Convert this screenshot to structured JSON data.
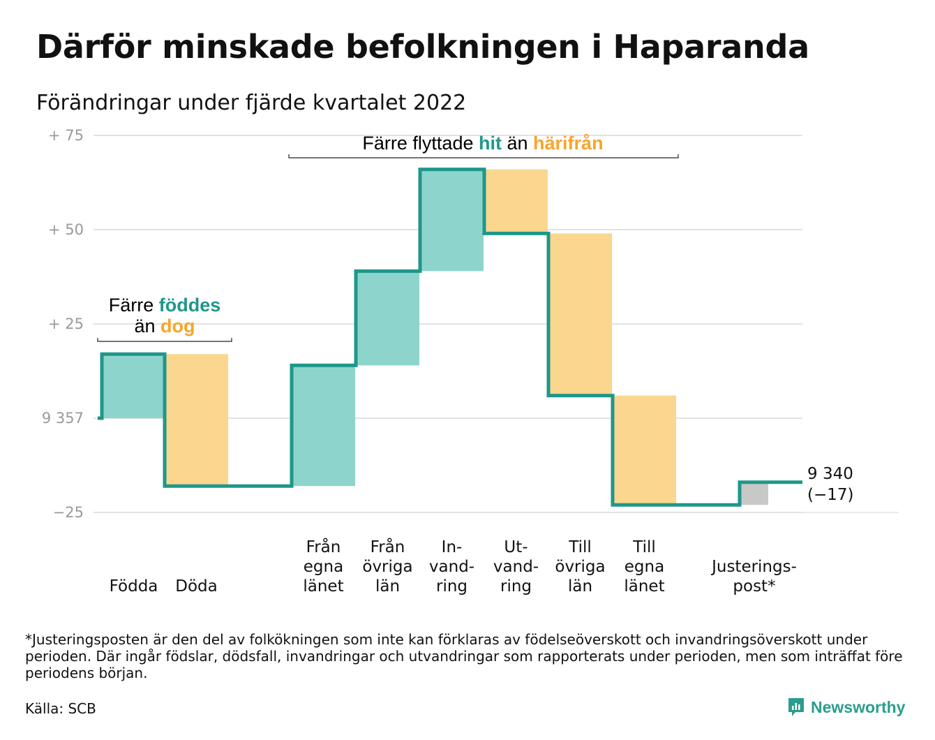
{
  "title": "Därför minskade befolkningen i Haparanda",
  "subtitle": "Förändringar under fjärde kvartalet 2022",
  "footnote": "*Justeringsposten är den del av folkökningen som inte kan förklaras av födelseöverskott och invandringsöverskott under perioden. Där ingår födslar, dödsfall, invandringar och utvandringar som rapporterats under perioden, men som inträffat före periodens början.",
  "source": "Källa: SCB",
  "brand": "Newsworthy",
  "colors": {
    "increase": "#8dd5cc",
    "decrease": "#fad68f",
    "adjustment": "#c8c8c8",
    "line": "#1f978a",
    "accent_teal": "#1f978a",
    "accent_orange": "#f6a52a",
    "grid": "#e2e2e2"
  },
  "annotations": {
    "births_deaths": {
      "line1_pre": "Färre ",
      "line1_em": "föddes",
      "line2_pre": "än ",
      "line2_em": "dog"
    },
    "migration": {
      "pre": "Färre flyttade ",
      "em1": "hit",
      "mid": " än ",
      "em2": "härifrån"
    }
  },
  "chart_data": {
    "type": "waterfall",
    "baseline": 9357,
    "baseline_label": "9 357",
    "end_label": [
      "9 340",
      "(−17)"
    ],
    "yticks": [
      {
        "value": 75,
        "label": "+ 75"
      },
      {
        "value": 50,
        "label": "+ 50"
      },
      {
        "value": 25,
        "label": "+ 25"
      },
      {
        "value": 0,
        "label": "9 357"
      },
      {
        "value": -25,
        "label": "−25"
      }
    ],
    "ylim": [
      -25,
      75
    ],
    "grid": true,
    "categories": [
      {
        "label": [
          "Födda"
        ],
        "value": 17,
        "kind": "increase"
      },
      {
        "label": [
          "Döda"
        ],
        "value": -35,
        "kind": "decrease"
      },
      {
        "label": [
          "Från",
          "egna",
          "länet"
        ],
        "value": 32,
        "kind": "increase"
      },
      {
        "label": [
          "Från",
          "övriga",
          "län"
        ],
        "value": 25,
        "kind": "increase"
      },
      {
        "label": [
          "In-",
          "vand-",
          "ring"
        ],
        "value": 27,
        "kind": "increase"
      },
      {
        "label": [
          "Ut-",
          "vand-",
          "ring"
        ],
        "value": -17,
        "kind": "decrease"
      },
      {
        "label": [
          "Till",
          "övriga",
          "län"
        ],
        "value": -43,
        "kind": "decrease"
      },
      {
        "label": [
          "Till",
          "egna",
          "länet"
        ],
        "value": -29,
        "kind": "decrease"
      },
      {
        "label": [
          "Justerings-",
          "post*"
        ],
        "value": 6,
        "kind": "adjustment"
      }
    ],
    "total_change": -17
  }
}
